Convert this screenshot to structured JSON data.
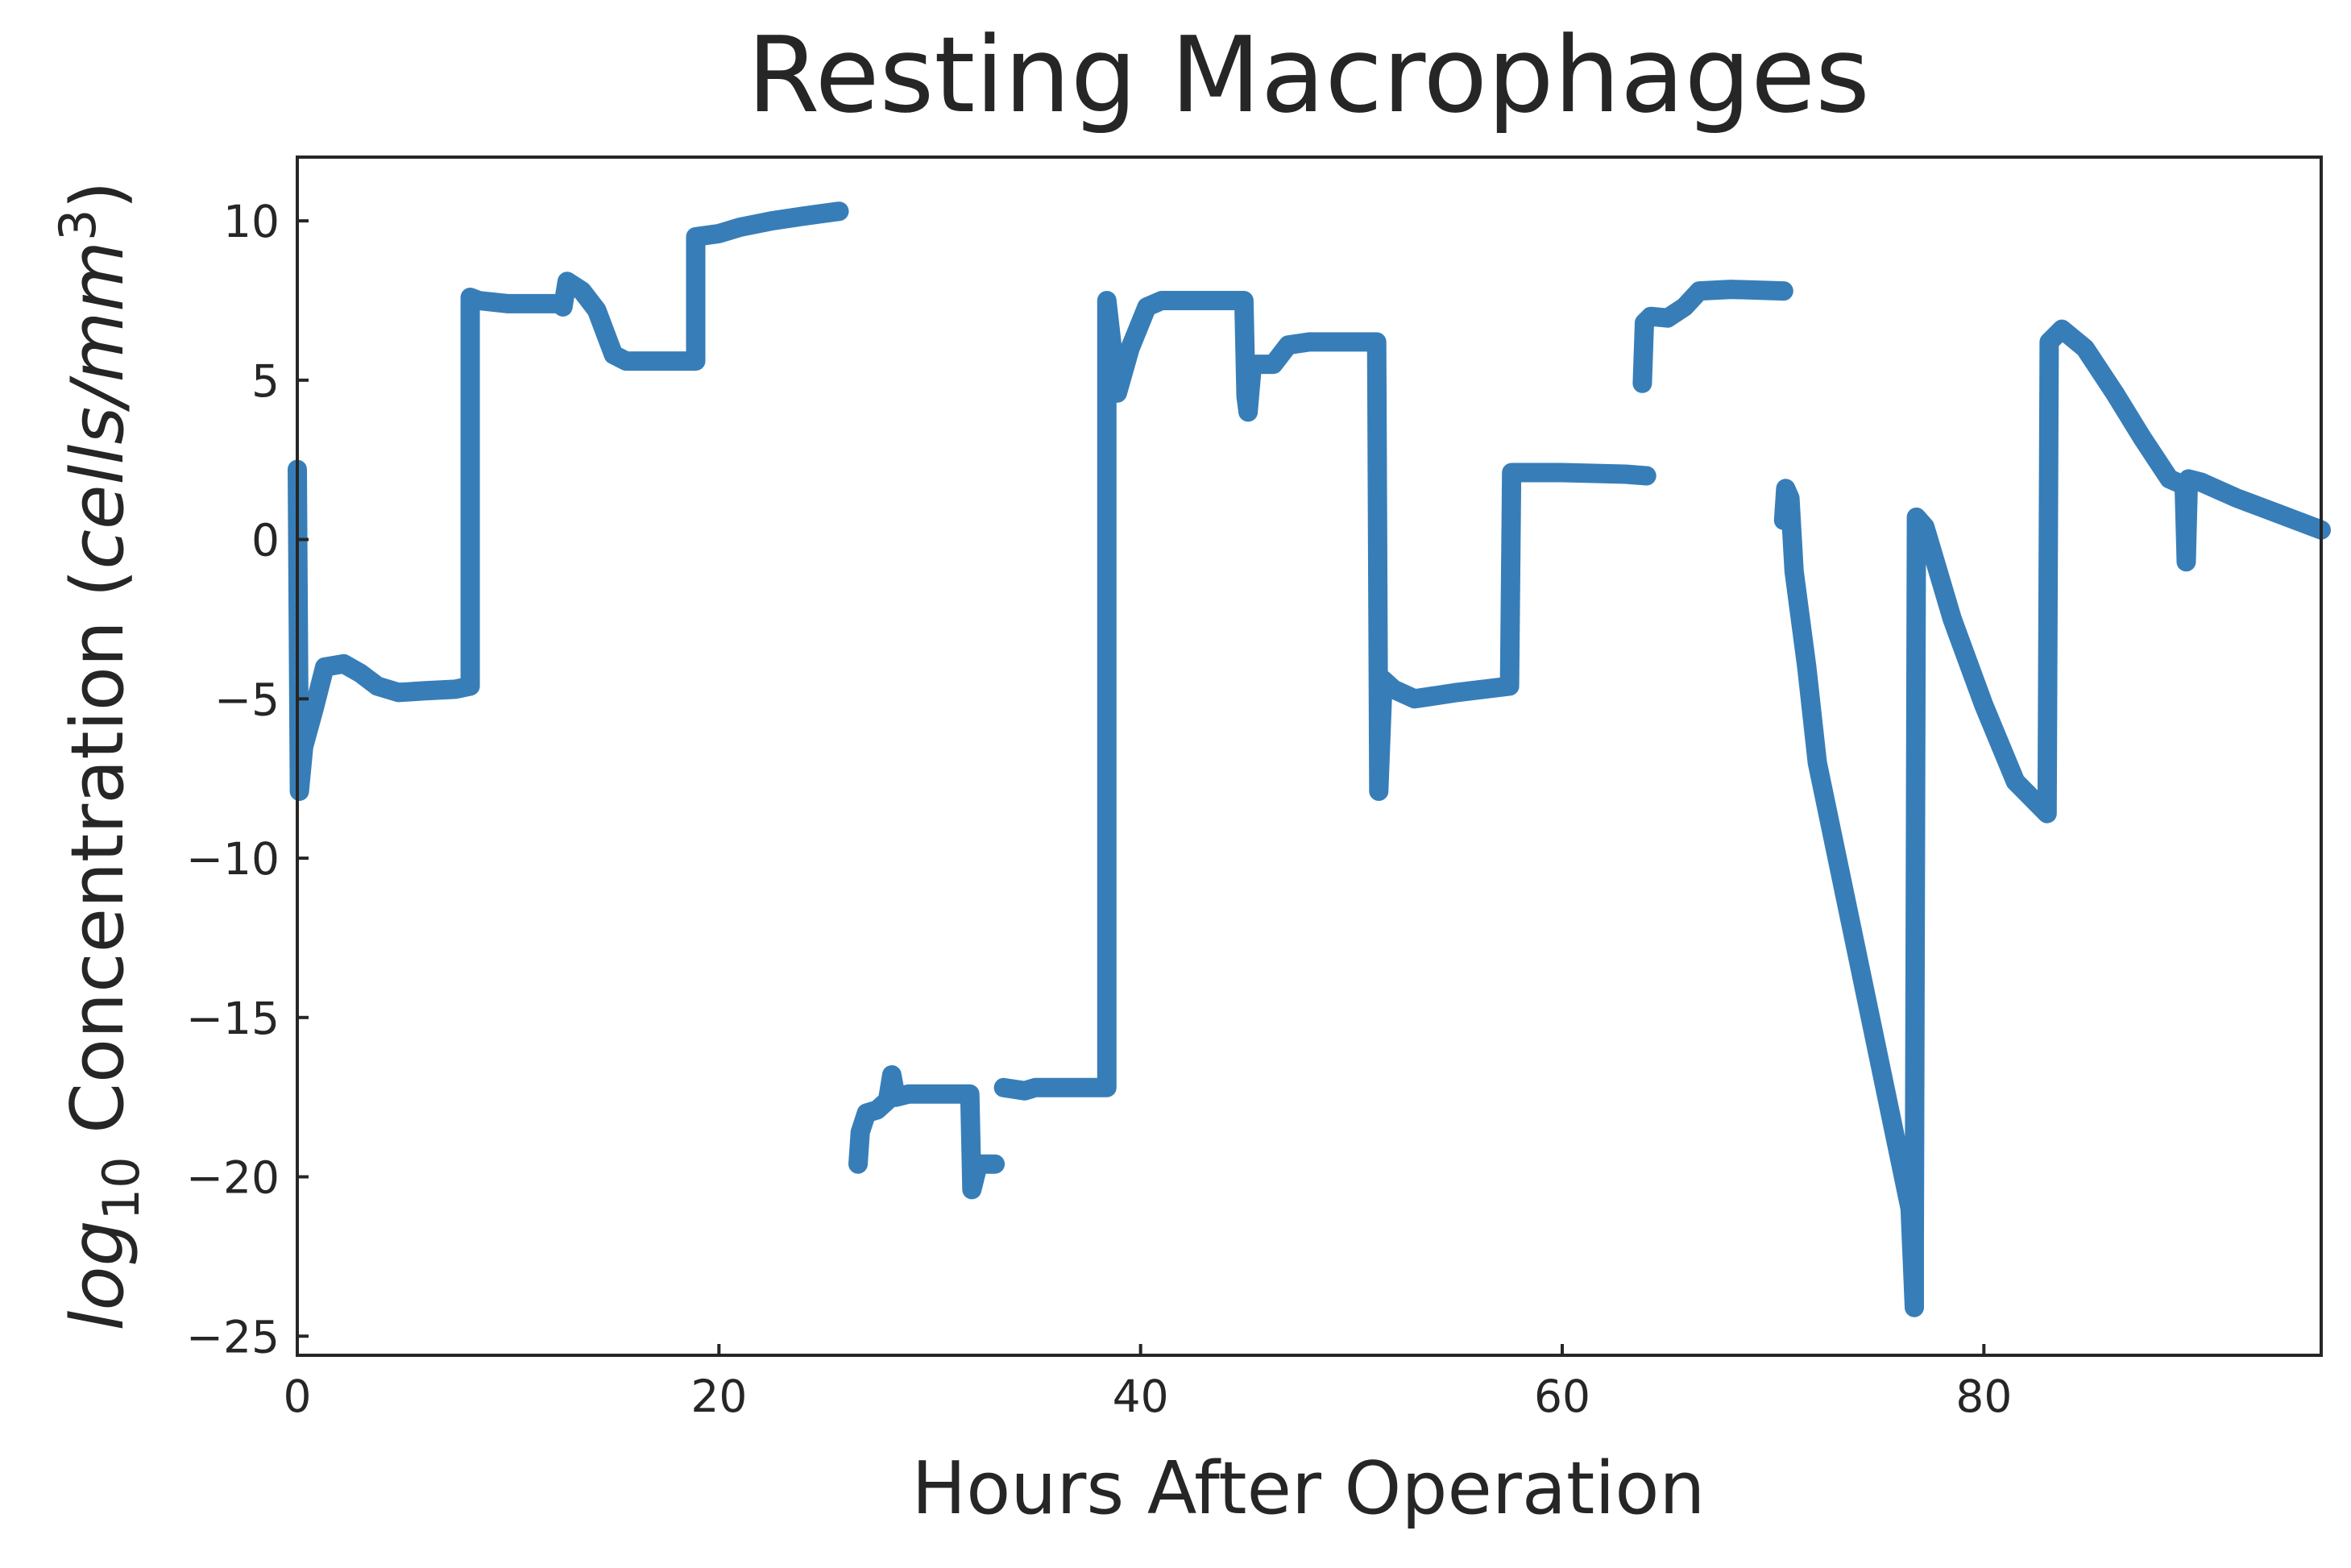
{
  "chart_data": {
    "type": "line",
    "title": "Resting Macrophages",
    "xlabel": "Hours After Operation",
    "ylabel": {
      "log": "log",
      "log_sub": "10",
      "mid": " Concentration (",
      "unit": "cells/mm",
      "unit_sup": "3",
      "close": ")"
    },
    "xlim": [
      0,
      96
    ],
    "ylim": [
      -25.6,
      12
    ],
    "xticks": [
      0,
      20,
      40,
      60,
      80
    ],
    "yticks": [
      10,
      5,
      0,
      -5,
      -10,
      -15,
      -20,
      -25
    ],
    "ytick_labels": [
      "10",
      "5",
      "0",
      "−5",
      "−10",
      "−15",
      "−20",
      "−25"
    ],
    "xtick_labels": [
      "0",
      "20",
      "40",
      "60",
      "80"
    ],
    "grid": false,
    "legend": "none",
    "line_color": "#377eb8",
    "series": [
      {
        "segments": [
          [
            [
              0,
              2.2
            ],
            [
              0.1,
              -7.9
            ],
            [
              0.3,
              -6.5
            ],
            [
              0.8,
              -5.3
            ],
            [
              1.3,
              -4.0
            ],
            [
              2.2,
              -3.9
            ],
            [
              3.0,
              -4.2
            ],
            [
              3.8,
              -4.6
            ],
            [
              4.8,
              -4.8
            ],
            [
              6.0,
              -4.75
            ],
            [
              7.5,
              -4.7
            ],
            [
              8.2,
              -4.6
            ],
            [
              8.2,
              7.6
            ],
            [
              8.6,
              7.5
            ],
            [
              10.0,
              7.4
            ],
            [
              12.4,
              7.4
            ],
            [
              12.6,
              7.3
            ],
            [
              12.8,
              8.1
            ],
            [
              13.5,
              7.8
            ],
            [
              14.2,
              7.2
            ],
            [
              14.6,
              6.5
            ],
            [
              15.0,
              5.8
            ],
            [
              15.6,
              5.6
            ],
            [
              17.0,
              5.6
            ],
            [
              18.9,
              5.6
            ],
            [
              18.9,
              9.5
            ],
            [
              20.0,
              9.6
            ],
            [
              21.0,
              9.8
            ],
            [
              22.5,
              10.0
            ],
            [
              24.0,
              10.15
            ],
            [
              25.7,
              10.3
            ]
          ],
          [
            [
              26.6,
              -19.6
            ],
            [
              26.7,
              -18.6
            ],
            [
              27.0,
              -18.0
            ],
            [
              27.5,
              -17.9
            ],
            [
              28.0,
              -17.6
            ],
            [
              28.2,
              -16.8
            ],
            [
              28.4,
              -17.5
            ],
            [
              29.0,
              -17.4
            ],
            [
              30.0,
              -17.4
            ],
            [
              31.9,
              -17.4
            ],
            [
              32.0,
              -20.4
            ],
            [
              32.3,
              -19.6
            ],
            [
              33.1,
              -19.6
            ]
          ],
          [
            [
              33.5,
              -17.2
            ],
            [
              34.5,
              -17.3
            ],
            [
              35.0,
              -17.2
            ],
            [
              36.5,
              -17.2
            ],
            [
              38.4,
              -17.2
            ],
            [
              38.4,
              7.5
            ],
            [
              38.9,
              4.6
            ],
            [
              39.5,
              6.0
            ],
            [
              40.3,
              7.3
            ],
            [
              41.0,
              7.5
            ],
            [
              43.0,
              7.5
            ],
            [
              44.9,
              7.5
            ],
            [
              45.0,
              4.5
            ],
            [
              45.1,
              4.0
            ],
            [
              45.3,
              5.5
            ],
            [
              46.3,
              5.5
            ],
            [
              47.0,
              6.1
            ],
            [
              48.0,
              6.2
            ],
            [
              50.0,
              6.2
            ],
            [
              51.2,
              6.2
            ],
            [
              51.3,
              -7.9
            ],
            [
              51.5,
              -4.4
            ],
            [
              52.0,
              -4.7
            ],
            [
              53.0,
              -5.0
            ],
            [
              55.0,
              -4.8
            ],
            [
              57.5,
              -4.6
            ],
            [
              57.6,
              2.1
            ],
            [
              60.0,
              2.1
            ],
            [
              63.0,
              2.05
            ],
            [
              64.0,
              2.0
            ]
          ],
          [
            [
              63.8,
              4.9
            ],
            [
              63.9,
              6.8
            ],
            [
              64.2,
              7.0
            ],
            [
              65.0,
              6.95
            ],
            [
              65.8,
              7.3
            ],
            [
              66.5,
              7.8
            ],
            [
              68.0,
              7.85
            ],
            [
              70.5,
              7.8
            ]
          ],
          [
            [
              70.5,
              0.6
            ],
            [
              70.6,
              1.6
            ],
            [
              70.8,
              1.3
            ],
            [
              71.0,
              -1.0
            ],
            [
              71.6,
              -4.0
            ],
            [
              72.1,
              -7.0
            ],
            [
              76.5,
              -21.0
            ],
            [
              76.7,
              -24.1
            ],
            [
              76.7,
              -22.0
            ],
            [
              76.8,
              0.7
            ],
            [
              77.2,
              0.4
            ],
            [
              78.5,
              -2.5
            ],
            [
              80.0,
              -5.2
            ],
            [
              81.5,
              -7.6
            ],
            [
              83.0,
              -8.6
            ],
            [
              83.1,
              6.2
            ],
            [
              83.7,
              6.6
            ],
            [
              84.8,
              6.0
            ],
            [
              86.2,
              4.6
            ],
            [
              87.5,
              3.2
            ],
            [
              88.8,
              1.9
            ],
            [
              89.5,
              1.7
            ],
            [
              89.6,
              -0.7
            ],
            [
              89.7,
              1.9
            ],
            [
              90.3,
              1.8
            ],
            [
              92.0,
              1.3
            ],
            [
              94.0,
              0.8
            ],
            [
              96.0,
              0.3
            ]
          ]
        ]
      }
    ]
  }
}
